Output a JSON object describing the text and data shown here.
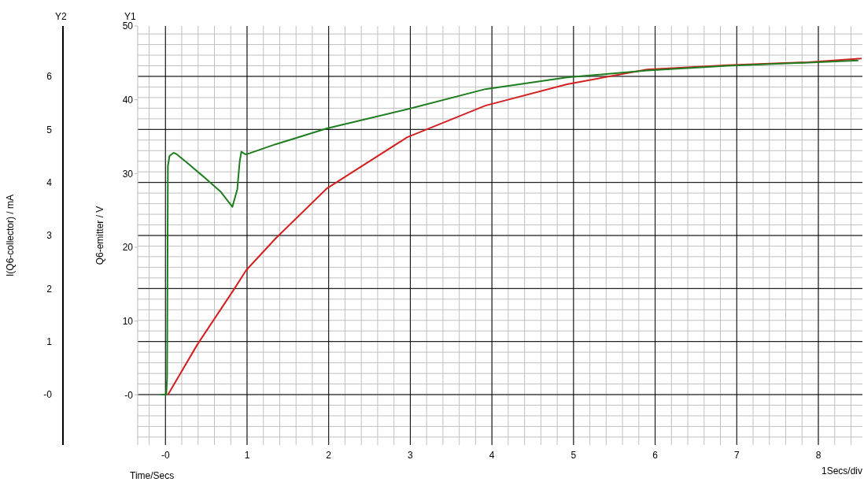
{
  "chart_data": {
    "type": "line",
    "xlabel": "Time/Secs",
    "ylabel": "Q6-emitter / V",
    "y2label": "I(Q6-collector) / mA",
    "annotations": [
      "Y1",
      "Y2",
      "1Secs/div"
    ],
    "xlim": [
      -0.34,
      8.54
    ],
    "xticks": [
      {
        "value": 0,
        "label": "-0"
      },
      1,
      2,
      3,
      4,
      5,
      6,
      7,
      8
    ],
    "ylim": [
      -6.8,
      50
    ],
    "yticks": [
      {
        "value": 0,
        "label": "-0"
      },
      10,
      20,
      30,
      40,
      50
    ],
    "y2lim": [
      -0.95,
      6.95
    ],
    "y2ticks": [
      {
        "value": 0,
        "label": "-0"
      },
      1,
      2,
      3,
      4,
      5,
      6
    ],
    "grid": true,
    "series": [
      {
        "color": "#d42020",
        "x": [
          0.03,
          0.39,
          0.84,
          0.99,
          1.35,
          1.98,
          2.96,
          3.92,
          4.92,
          5.9,
          6.89,
          7.88,
          8.39,
          8.53
        ],
        "values": [
          0,
          6.8,
          14.3,
          16.9,
          21.2,
          28,
          34.9,
          39.2,
          42.1,
          44.1,
          44.7,
          45.1,
          45.5,
          45.6
        ]
      },
      {
        "color": "#1e7d1e",
        "axis": "y2",
        "x": [
          -0.05,
          0.01,
          0.02,
          0.03,
          0.05,
          0.1,
          0.14,
          0.29,
          0.48,
          0.68,
          0.82,
          0.88,
          0.91,
          0.93,
          0.98,
          1.03,
          1.35,
          1.98,
          2.99,
          3.92,
          4.92,
          5.9,
          6.89,
          7.88,
          8.49
        ],
        "values": [
          0,
          0,
          0.31,
          4.31,
          4.5,
          4.56,
          4.53,
          4.34,
          4.09,
          3.82,
          3.54,
          3.87,
          4.4,
          4.58,
          4.53,
          4.55,
          4.72,
          5.02,
          5.39,
          5.76,
          5.98,
          6.11,
          6.2,
          6.26,
          6.3
        ]
      }
    ]
  }
}
